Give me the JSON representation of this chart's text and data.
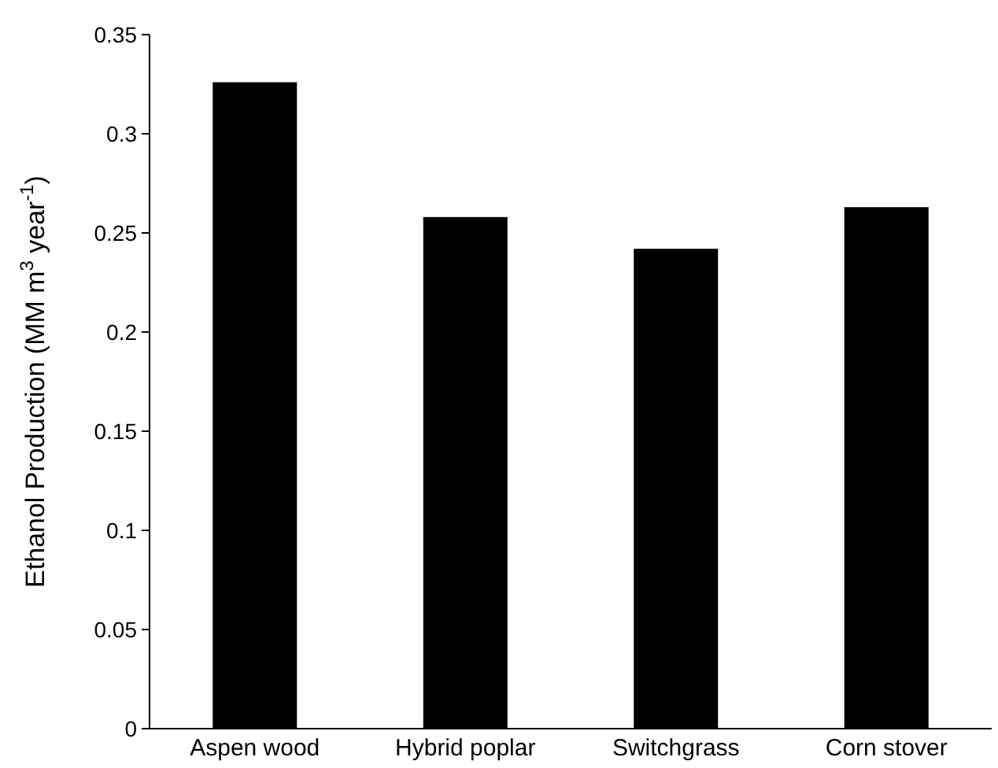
{
  "chart_data": {
    "type": "bar",
    "ylabel": "Ethanol Production (MM m$^{3}$ year$^{-1}$)",
    "categories": [
      "Aspen wood",
      "Hybrid poplar",
      "Switchgrass",
      "Corn stover"
    ],
    "values": [
      0.326,
      0.258,
      0.242,
      0.263
    ],
    "color": "#000000",
    "ylim": [
      0,
      0.35
    ],
    "yticks": [
      0,
      0.05,
      0.1,
      0.15,
      0.2,
      0.25,
      0.3,
      0.35
    ],
    "grid": false
  }
}
